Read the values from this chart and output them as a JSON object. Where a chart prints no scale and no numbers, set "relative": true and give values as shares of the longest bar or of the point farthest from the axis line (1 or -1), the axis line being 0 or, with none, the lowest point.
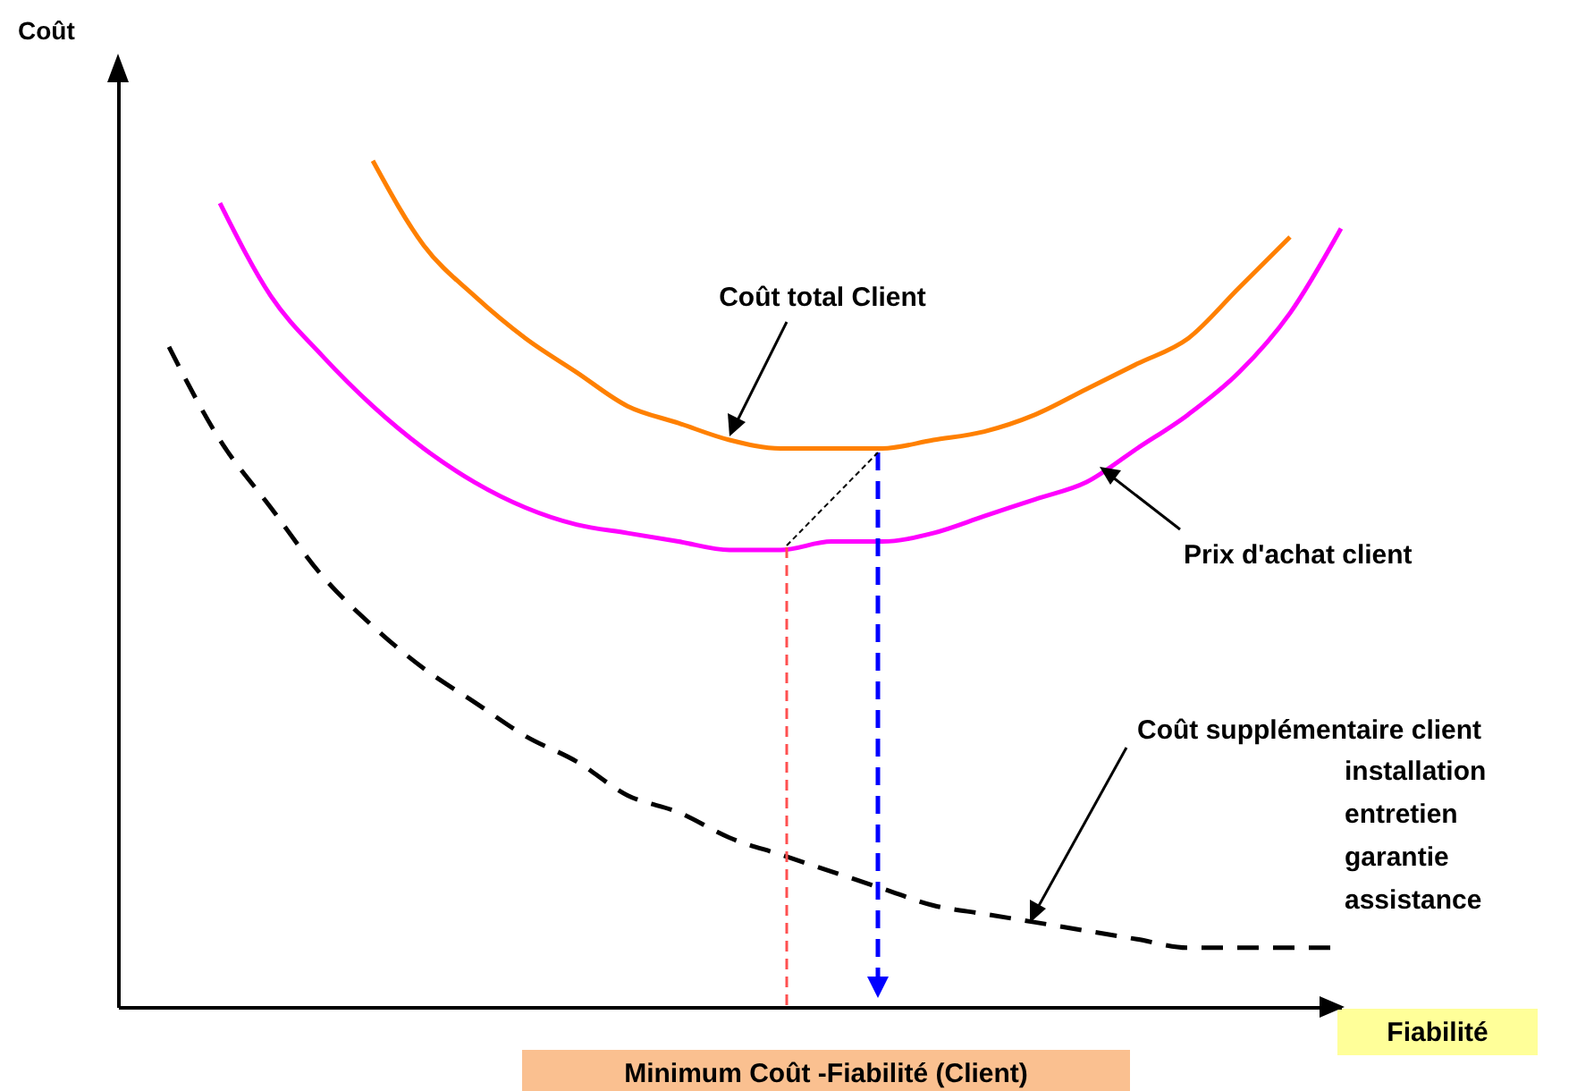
{
  "chart_data": {
    "type": "line",
    "relative": true,
    "xlabel": "Fiabilité",
    "ylabel": "Coût",
    "categories": [
      null,
      null,
      null,
      null,
      null,
      null,
      null,
      null,
      null,
      null,
      null,
      null,
      null,
      null,
      null,
      null,
      null,
      null,
      null,
      null,
      null,
      null,
      null,
      null,
      null
    ],
    "series": [
      {
        "color": "#ff8000",
        "line_style": "solid",
        "values": [
          null,
          null,
          null,
          null,
          null,
          1.0,
          0.9,
          0.84,
          0.79,
          0.75,
          0.71,
          0.69,
          0.67,
          0.66,
          0.66,
          0.66,
          0.67,
          0.68,
          0.7,
          0.73,
          0.76,
          0.79,
          0.85,
          0.91,
          null
        ]
      },
      {
        "color": "#ff00ff",
        "line_style": "solid",
        "values": [
          null,
          null,
          0.95,
          0.84,
          0.77,
          0.71,
          0.66,
          0.62,
          0.59,
          0.57,
          0.56,
          0.55,
          0.54,
          0.54,
          0.55,
          0.55,
          0.56,
          0.58,
          0.6,
          0.62,
          0.66,
          0.7,
          0.75,
          0.82,
          0.92
        ]
      },
      {
        "color": "#000000",
        "line_style": "dashed",
        "values": [
          null,
          0.78,
          0.67,
          0.59,
          0.51,
          0.45,
          0.4,
          0.36,
          0.32,
          0.29,
          0.25,
          0.23,
          0.2,
          0.18,
          0.16,
          0.14,
          0.12,
          0.11,
          0.1,
          0.09,
          0.08,
          0.07,
          0.07,
          0.07,
          0.07
        ]
      }
    ],
    "annotations": [
      "Coût total Client",
      "Prix d'achat client",
      "Coût supplémentaire client",
      "installation",
      "entretien",
      "garantie",
      "assistance",
      "Minimum Coût -Fiabilité (Client)"
    ]
  }
}
